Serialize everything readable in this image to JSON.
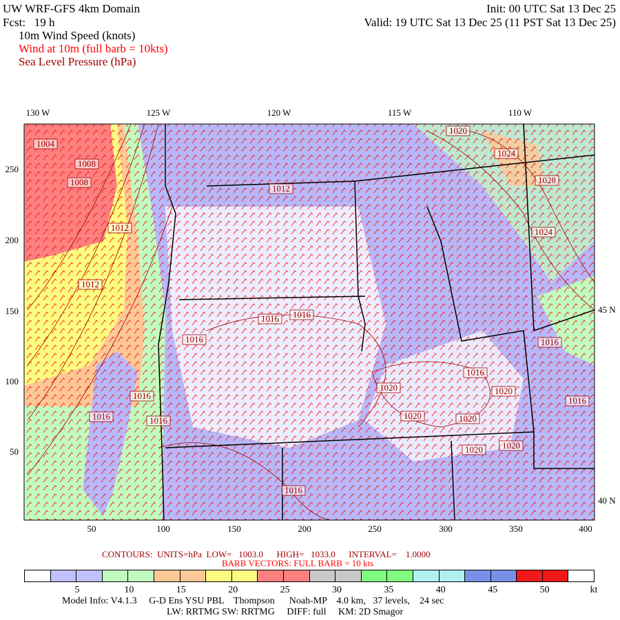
{
  "header": {
    "title": "UW WRF-GFS 4km Domain",
    "init": "Init: 00 UTC Sat 13 Dec 25",
    "fcst": "Fcst:   19 h",
    "valid": "Valid: 19 UTC Sat 13 Dec 25 (11 PST Sat 13 Dec 25)",
    "field1": "10m Wind Speed (knots)",
    "field2": "Wind at 10m (full barb = 10kts)",
    "field3": "Sea Level Pressure (hPa)"
  },
  "map": {
    "lon_labels": [
      "130 W",
      "125 W",
      "120 W",
      "115 W",
      "110 W"
    ],
    "lat_labels": [
      "45 N",
      "40 N"
    ],
    "y_ticks": [
      "250",
      "200",
      "150",
      "100",
      "50"
    ],
    "x_ticks": [
      "50",
      "100",
      "150",
      "200",
      "250",
      "300",
      "350",
      "400"
    ],
    "contour_labels": [
      "1004",
      "1008",
      "1008",
      "1012",
      "1012",
      "1012",
      "1016",
      "1016",
      "1016",
      "1016",
      "1016",
      "1016",
      "1016",
      "1016",
      "1016",
      "1020",
      "1020",
      "1020",
      "1020",
      "1020",
      "1020",
      "1020",
      "1024",
      "1028",
      "1024",
      "1016"
    ],
    "colors": {
      "ocean_low": "#b8b8f8",
      "land_bg": "#ffffff",
      "contour": "#a00000",
      "barb": "#ff0000",
      "border": "#000000"
    }
  },
  "footer": {
    "contours": "CONTOURS:  UNITS=hPa  LOW=   1003.0      HIGH=   1033.0      INTERVAL=    1.0000",
    "barbs": "BARB VECTORS:  FULL BARB = 10 kts",
    "colorbar_labels": [
      "5",
      "10",
      "15",
      "20",
      "25",
      "30",
      "35",
      "40",
      "45",
      "50"
    ],
    "colorbar_unit": "kt",
    "colorbar_colors": [
      "#ffffff",
      "#c0c0fc",
      "#c0c0fc",
      "#c0fcc0",
      "#c0fcc0",
      "#fcc896",
      "#fcc896",
      "#fcfc80",
      "#fcfc80",
      "#fc8080",
      "#fc8080",
      "#c8c8c8",
      "#c8c8c8",
      "#80fc80",
      "#80fc80",
      "#b0f0f0",
      "#b0f0f0",
      "#7890e8",
      "#7890e8",
      "#f01818",
      "#f01818",
      "#ffffff"
    ],
    "model_info": "Model Info: V4.1.3     G-D Ens YSU PBL    Thompson      Noah-MP    4.0 km,   37 levels,    24 sec",
    "physics": "LW: RRTMG SW: RRTMG     DIFF: full     KM: 2D Smagor"
  }
}
